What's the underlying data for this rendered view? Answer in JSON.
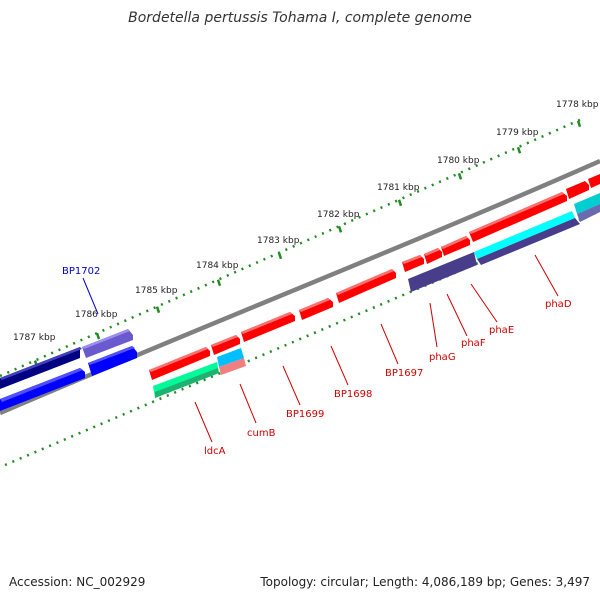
{
  "title": "Bordetella pertussis Tohama I, complete genome",
  "footer": {
    "accession": "Accession: NC_002929",
    "stats": "Topology: circular; Length: 4,086,189 bp; Genes: 3,497"
  },
  "kbp_labels": [
    "1778 kbp",
    "1779 kbp",
    "1780 kbp",
    "1781 kbp",
    "1782 kbp",
    "1783 kbp",
    "1784 kbp",
    "1785 kbp",
    "1786 kbp",
    "1787 kbp"
  ],
  "gene_labels": [
    "BP1702",
    "ldcA",
    "cumB",
    "BP1699",
    "BP1698",
    "BP1697",
    "phaG",
    "phaF",
    "phaE",
    "phaD"
  ],
  "colors": {
    "backbone": "#808080",
    "ruler": "#228B22",
    "gene_forward": "#FF0000",
    "gene_reverse": "#0000FF",
    "gene_dark_reverse": "#000080",
    "gene_light": "#7B68EE",
    "cog_slate": "#483D8B",
    "cog_cyan": "#00CED1",
    "cog_green": "#00FA9A",
    "cog_pink": "#F08080",
    "label_red": "#CC0000",
    "label_blue": "#0000CC"
  }
}
